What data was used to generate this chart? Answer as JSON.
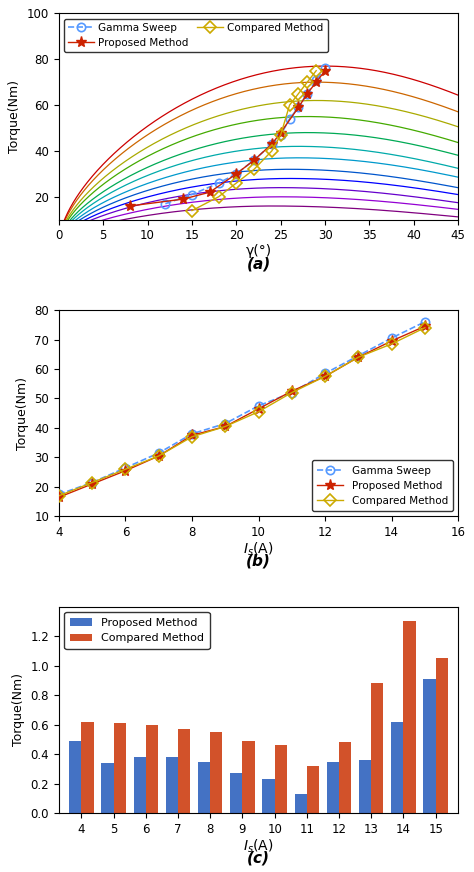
{
  "subplot_a": {
    "xlabel": "γ(°)",
    "ylabel": "Torque(Nm)",
    "xlim": [
      0,
      45
    ],
    "ylim": [
      10,
      100
    ],
    "yticks": [
      20,
      40,
      60,
      80,
      100
    ],
    "xticks": [
      0,
      5,
      10,
      15,
      20,
      25,
      30,
      35,
      40,
      45
    ],
    "curve_colors": [
      "#800080",
      "#9400D3",
      "#6600cc",
      "#0000FF",
      "#0055cc",
      "#0099cc",
      "#00aaaa",
      "#00aa55",
      "#44aa00",
      "#aaaa00",
      "#cc6600",
      "#cc0000"
    ],
    "curve_peak_gammas": [
      24,
      25,
      25,
      26,
      26,
      27,
      27,
      28,
      28,
      29,
      29,
      30
    ],
    "curve_peak_vals": [
      16,
      20,
      24,
      28,
      32,
      37,
      42,
      48,
      55,
      62,
      70,
      77
    ],
    "gamma_sweep_x": [
      12,
      15,
      18,
      20,
      22,
      24,
      25,
      26,
      27,
      28,
      29,
      30
    ],
    "gamma_sweep_y": [
      17,
      21,
      26,
      30,
      36,
      43,
      47,
      54,
      59,
      65,
      71,
      76
    ],
    "proposed_x": [
      8,
      14,
      17,
      20,
      22,
      24,
      25,
      27,
      28,
      29,
      30
    ],
    "proposed_y": [
      16,
      19,
      22,
      30,
      36,
      43,
      48,
      59,
      65,
      70,
      75
    ],
    "compared_x": [
      15,
      18,
      20,
      22,
      24,
      25,
      26,
      27,
      28,
      29
    ],
    "compared_y": [
      14,
      20,
      26,
      32,
      40,
      47,
      60,
      65,
      70,
      75
    ]
  },
  "subplot_b": {
    "xlabel": "$I_s$(A)",
    "ylabel": "Torque(Nm)",
    "xlim": [
      4,
      16
    ],
    "ylim": [
      10,
      80
    ],
    "xticks": [
      4,
      6,
      8,
      10,
      12,
      14,
      16
    ],
    "yticks": [
      10,
      20,
      30,
      40,
      50,
      60,
      70,
      80
    ],
    "Is_vals": [
      4,
      5,
      6,
      7,
      8,
      9,
      10,
      11,
      12,
      13,
      14,
      15
    ],
    "gamma_sweep_torque": [
      17.5,
      21.5,
      26.5,
      31.5,
      38.0,
      41.5,
      47.5,
      52.0,
      58.5,
      64.5,
      70.5,
      76.0
    ],
    "proposed_torque": [
      16.5,
      21.0,
      25.5,
      30.5,
      37.5,
      40.5,
      46.5,
      52.5,
      57.5,
      64.0,
      69.5,
      74.5
    ],
    "compared_torque": [
      17.0,
      21.5,
      26.0,
      30.5,
      37.0,
      40.5,
      45.5,
      52.0,
      57.5,
      64.0,
      68.5,
      74.0
    ]
  },
  "subplot_c": {
    "xlabel": "$I_s$(A)",
    "ylabel": "Torque(Nm)",
    "ylim": [
      0,
      1.4
    ],
    "yticks": [
      0.0,
      0.2,
      0.4,
      0.6,
      0.8,
      1.0,
      1.2
    ],
    "Is_vals": [
      4,
      5,
      6,
      7,
      8,
      9,
      10,
      11,
      12,
      13,
      14,
      15
    ],
    "proposed": [
      0.49,
      0.34,
      0.38,
      0.38,
      0.35,
      0.27,
      0.23,
      0.13,
      0.35,
      0.36,
      0.62,
      0.91
    ],
    "compared": [
      0.62,
      0.61,
      0.6,
      0.57,
      0.55,
      0.49,
      0.46,
      0.32,
      0.48,
      0.88,
      1.3,
      1.05
    ],
    "bar_color_proposed": "#4472c4",
    "bar_color_compared": "#d2522a"
  },
  "colors": {
    "gamma_sweep": "#5599ff",
    "proposed": "#cc2200",
    "compared": "#ccaa00"
  },
  "panel_labels": [
    "(a)",
    "(b)",
    "(c)"
  ]
}
